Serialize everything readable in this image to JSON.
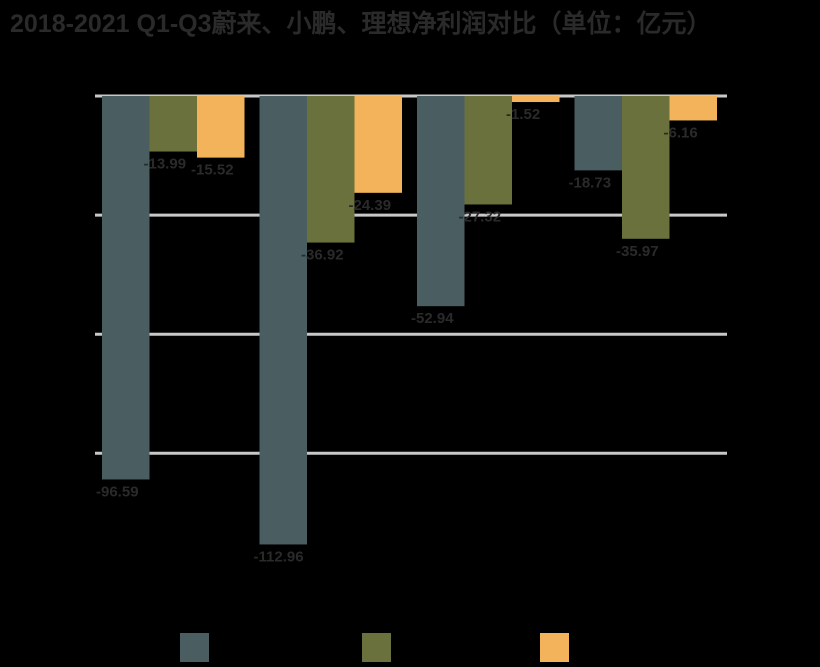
{
  "chart_data": {
    "type": "bar",
    "title": "2018-2021 Q1-Q3蔚来、小鹏、理想净利润对比（单位：亿元）",
    "categories": [
      "",
      "",
      "",
      ""
    ],
    "series": [
      {
        "name": "",
        "color": "#4a5e62",
        "values": [
          -96.59,
          -112.96,
          -52.94,
          -18.73
        ],
        "labels": [
          "-96.59",
          "-112.96",
          "-52.94",
          "-18.73"
        ]
      },
      {
        "name": "",
        "color": "#6b713c",
        "values": [
          -13.99,
          -36.92,
          -27.32,
          -35.97
        ],
        "labels": [
          "-13.99",
          "-36.92",
          "-27.32",
          "-35.97"
        ]
      },
      {
        "name": "",
        "color": "#f2b35b",
        "values": [
          -15.52,
          -24.39,
          -1.52,
          -6.16
        ],
        "labels": [
          "-15.52",
          "-24.39",
          "-1.52",
          "-6.16"
        ]
      }
    ],
    "ylim": [
      -120,
      0
    ],
    "yticks": [
      0,
      -30,
      -60,
      -90
    ],
    "grid": true,
    "legend_position": "bottom",
    "xlabel": "",
    "ylabel": "",
    "colors": {
      "background": "#000000",
      "grid": "#c8c8c8",
      "label_text": "#2a2a2a",
      "title_text": "#2a2a2a"
    }
  }
}
